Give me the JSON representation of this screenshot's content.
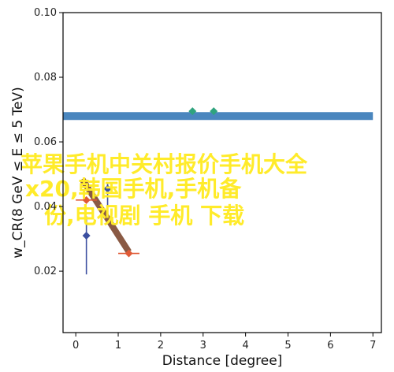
{
  "chart_data": {
    "type": "scatter",
    "xlabel": "Distance [degree]",
    "ylabel": "w_CR(8 GeV ≤ E ≤ 5 TeV)",
    "xlim": [
      -0.3,
      7.2
    ],
    "ylim": [
      0.001,
      0.1
    ],
    "yscale": "linear",
    "xticks": [
      0,
      1,
      2,
      3,
      4,
      5,
      6,
      7
    ],
    "yticks": [
      0.02,
      0.04,
      0.06,
      0.08,
      0.1
    ],
    "ytick_labels": [
      "0.02",
      "0.04",
      "0.06",
      "0.08",
      "0.10"
    ],
    "grid": false,
    "series": [
      {
        "marker": "diamond",
        "color": "#3B4FA0",
        "points": [
          {
            "x": 0.25,
            "y": 0.031,
            "yerr": [
              0.012,
              0.006
            ]
          },
          {
            "x": 0.75,
            "y": 0.0455,
            "yerr": [
              0.006,
              0.002
            ]
          }
        ]
      },
      {
        "marker": "diamond",
        "color": "#E05A36",
        "points": [
          {
            "x": 0.25,
            "y": 0.042,
            "xerr": 0.25
          },
          {
            "x": 1.25,
            "y": 0.0255,
            "xerr": 0.25
          }
        ]
      },
      {
        "marker": "diamond",
        "color": "#2FA37E",
        "points": [
          {
            "x": 2.75,
            "y": 0.0695
          },
          {
            "x": 3.25,
            "y": 0.0695
          }
        ]
      }
    ],
    "bands": [
      {
        "color": "#4A86BE",
        "x": [
          -0.3,
          7.0
        ],
        "y": [
          0.068,
          0.068
        ]
      },
      {
        "color": "#8A5A44",
        "x": [
          0.15,
          1.25
        ],
        "y": [
          0.0485,
          0.026
        ]
      }
    ],
    "colors": {
      "blue_series": "#3B4FA0",
      "orange_series": "#E05A36",
      "green_series": "#2FA37E",
      "blue_band": "#4A86BE",
      "brown_band": "#8A5A44",
      "overlay_text": "#FFEB2A"
    }
  },
  "overlay": {
    "lines": [
      "苹果手机中关村报价手机大全",
      "x20,韩国手机,手机备",
      "份,电视剧 手机 下载"
    ]
  }
}
